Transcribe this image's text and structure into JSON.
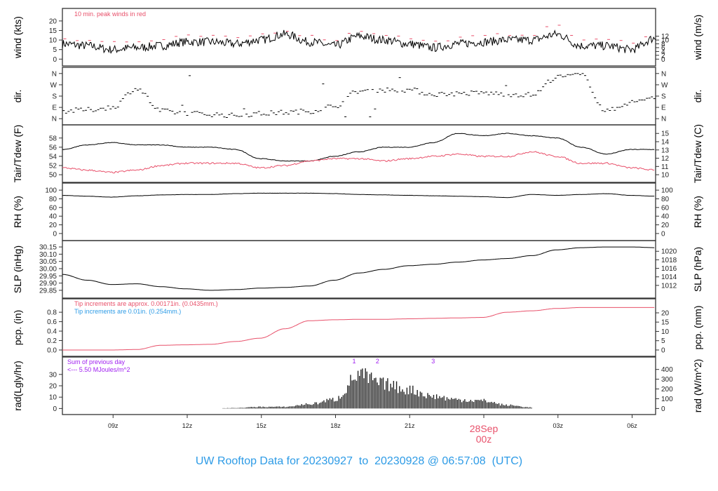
{
  "title": "UW Rooftop Data for 20230927  to  20230928 @ 06:57:08  (UTC)",
  "date_marker": {
    "date": "28Sep",
    "time": "00z",
    "color": "#e8506a"
  },
  "chart_data": {
    "type": "line",
    "x_unit": "hours since 06:57Z 27Sep",
    "x_range": [
      0,
      24
    ],
    "x_ticks": [
      {
        "h": 2.05,
        "label": "09z"
      },
      {
        "h": 5.05,
        "label": "12z"
      },
      {
        "h": 8.05,
        "label": "15z"
      },
      {
        "h": 11.05,
        "label": "18z"
      },
      {
        "h": 14.05,
        "label": "21z"
      },
      {
        "h": 17.05,
        "label": ""
      },
      {
        "h": 20.05,
        "label": "03z"
      },
      {
        "h": 23.05,
        "label": "06z"
      }
    ],
    "hours": [
      0,
      1,
      2,
      3,
      4,
      5,
      6,
      7,
      8,
      9,
      10,
      11,
      12,
      13,
      14,
      15,
      16,
      17,
      18,
      19,
      20,
      21,
      22,
      23,
      24
    ],
    "panels": [
      {
        "key": "wind",
        "ylabel": "wind (kts)",
        "ylabel_right": "wind (m/s)",
        "ylim": [
          -1,
          24
        ],
        "ticks": [
          "0",
          "5",
          "10",
          "15",
          "20"
        ],
        "tick_values": [
          0,
          5,
          10,
          15,
          20
        ],
        "ticks_right": [
          "0",
          "2",
          "4",
          "6",
          "8",
          "10",
          "12"
        ],
        "tick_values_right": [
          0,
          2,
          4,
          6,
          8,
          10,
          12
        ],
        "right_scale": 1.944,
        "note": "10 min. peak winds in red",
        "series": [
          {
            "name": "wind speed",
            "color": "#000000",
            "values": [
              8,
              7,
              5,
              6,
              7,
              9,
              9,
              8,
              10,
              13,
              9,
              7,
              12,
              10,
              8,
              6,
              8,
              9,
              10,
              10,
              13,
              7,
              7,
              5,
              11
            ]
          },
          {
            "name": "10 min peak",
            "color": "#e8506a",
            "style": "dash",
            "values": [
              11,
              10,
              9,
              9,
              10,
              12,
              12,
              11,
              13,
              15,
              12,
              10,
              15,
              13,
              11,
              9,
              11,
              12,
              13,
              13,
              18,
              10,
              10,
              9,
              14
            ]
          }
        ]
      },
      {
        "key": "dir",
        "ylabel": "dir.",
        "ylabel_right": "dir.",
        "ylim": [
          -10,
          370
        ],
        "ticks": [
          "N",
          "E",
          "S",
          "W",
          "N"
        ],
        "tick_values": [
          0,
          90,
          180,
          270,
          360
        ],
        "ticks_right": [
          "N",
          "E",
          "S",
          "W",
          "N"
        ],
        "tick_values_right": [
          0,
          90,
          180,
          270,
          360
        ],
        "series": [
          {
            "name": "wind direction (deg)",
            "color": "#000000",
            "style": "points",
            "values": [
              60,
              70,
              90,
              240,
              60,
              45,
              35,
              25,
              40,
              50,
              60,
              100,
              220,
              230,
              230,
              195,
              200,
              205,
              195,
              190,
              330,
              350,
              60,
              130,
              175
            ]
          }
        ]
      },
      {
        "key": "temp",
        "ylabel": "Tair/Tdew (F)",
        "ylabel_right": "Tair/Tdew (C)",
        "ylim": [
          49.4,
          59.8
        ],
        "ticks": [
          "50",
          "52",
          "54",
          "56",
          "58"
        ],
        "tick_values": [
          50,
          52,
          54,
          56,
          58
        ],
        "ticks_right": [
          "10",
          "11",
          "12",
          "13",
          "14",
          "15"
        ],
        "tick_values_right": [
          50,
          51.8,
          53.6,
          55.4,
          57.2,
          59
        ],
        "series": [
          {
            "name": "Tair",
            "color": "#000000",
            "values": [
              55.5,
              56.5,
              57,
              56.5,
              56.5,
              56,
              56,
              55.5,
              53.5,
              53,
              53,
              54,
              55,
              56,
              56,
              57,
              59,
              58.5,
              59,
              58.5,
              58,
              56,
              54.5,
              55.5,
              55.5
            ]
          },
          {
            "name": "Tdew",
            "color": "#e8506a",
            "values": [
              51.5,
              51,
              50.5,
              51,
              52,
              52.5,
              52.5,
              52.5,
              51.5,
              52,
              53,
              53.5,
              53.5,
              53,
              53.5,
              54,
              54.5,
              54,
              54,
              55,
              54,
              52.5,
              52.5,
              51.5,
              51
            ]
          }
        ]
      },
      {
        "key": "rh",
        "ylabel": "RH (%)",
        "ylabel_right": "RH (%)",
        "ylim": [
          -5,
          105
        ],
        "ticks": [
          "0",
          "20",
          "40",
          "60",
          "80",
          "100"
        ],
        "tick_values": [
          0,
          20,
          40,
          60,
          80,
          100
        ],
        "ticks_right": [
          "0",
          "20",
          "40",
          "60",
          "80",
          "100"
        ],
        "tick_values_right": [
          0,
          20,
          40,
          60,
          80,
          100
        ],
        "series": [
          {
            "name": "RH",
            "color": "#000000",
            "values": [
              88,
              86,
              84,
              87,
              89,
              90,
              90,
              92,
              93,
              93,
              93,
              92,
              90,
              89,
              88,
              87,
              86,
              85,
              83,
              90,
              88,
              90,
              92,
              88,
              86
            ]
          }
        ]
      },
      {
        "key": "slp",
        "ylabel": "SLP (inHg)",
        "ylabel_right": "SLP (hPa)",
        "ylim": [
          29.83,
          30.16
        ],
        "ticks": [
          "29.85",
          "29.90",
          "29.95",
          "30.00",
          "30.05",
          "30.10",
          "30.15"
        ],
        "tick_values": [
          29.85,
          29.9,
          29.95,
          30,
          30.05,
          30.1,
          30.15
        ],
        "ticks_right": [
          "1012",
          "1014",
          "1016",
          "1018",
          "1020"
        ],
        "tick_values_right": [
          29.884,
          29.943,
          30.002,
          30.061,
          30.12
        ],
        "series": [
          {
            "name": "SLP",
            "color": "#000000",
            "values": [
              29.96,
              29.92,
              29.89,
              29.895,
              29.875,
              29.86,
              29.85,
              29.855,
              29.865,
              29.87,
              29.88,
              29.92,
              29.97,
              29.995,
              30.02,
              30.03,
              30.045,
              30.06,
              30.07,
              30.09,
              30.13,
              30.145,
              30.15,
              30.15,
              30.145
            ]
          }
        ]
      },
      {
        "key": "pcp",
        "ylabel": "pcp. (in)",
        "ylabel_right": "pcp. (mm)",
        "ylim": [
          -0.03,
          0.98
        ],
        "ticks": [
          "0.0",
          "0.2",
          "0.4",
          "0.6",
          "0.8"
        ],
        "tick_values": [
          0,
          0.2,
          0.4,
          0.6,
          0.8
        ],
        "ticks_right": [
          "0",
          "5",
          "10",
          "15",
          "20"
        ],
        "tick_values_right": [
          0,
          0.197,
          0.394,
          0.591,
          0.787
        ],
        "note": "Tip increments are approx. 0.00171in. (0.0435mm.)",
        "note2": "Tip increments are 0.01in. (0.254mm.)",
        "series": [
          {
            "name": "precip",
            "color": "#e8506a",
            "values": [
              0,
              0,
              0,
              0.01,
              0.1,
              0.11,
              0.12,
              0.18,
              0.25,
              0.45,
              0.62,
              0.64,
              0.65,
              0.65,
              0.66,
              0.67,
              0.68,
              0.69,
              0.8,
              0.83,
              0.88,
              0.9,
              0.9,
              0.9,
              0.9
            ]
          }
        ]
      },
      {
        "key": "rad",
        "ylabel": "rad(Lgly/hr)",
        "ylabel_right": "rad (W/m^2)",
        "ylim": [
          -1,
          41
        ],
        "ticks": [
          "0",
          "10",
          "20",
          "30"
        ],
        "tick_values": [
          0,
          10,
          20,
          30
        ],
        "ticks_right": [
          "0",
          "100",
          "200",
          "300",
          "400"
        ],
        "tick_values_right": [
          0,
          8.6,
          17.2,
          25.8,
          34.4
        ],
        "note": "Sum of previous day",
        "note2": "<--- 5.50 MJoules/m^2",
        "markers": [
          "1",
          "2",
          "3"
        ],
        "marker_hours": [
          11.8,
          12.75,
          15.0
        ],
        "series": [
          {
            "name": "radiation",
            "color": "#222222",
            "style": "bars",
            "values": [
              0,
              0,
              0,
              0,
              0,
              0,
              0,
              0.5,
              1.5,
              1.5,
              4,
              8,
              30,
              22,
              17,
              11,
              8,
              7,
              3,
              1,
              0,
              0,
              0,
              0,
              0
            ]
          }
        ]
      }
    ]
  }
}
